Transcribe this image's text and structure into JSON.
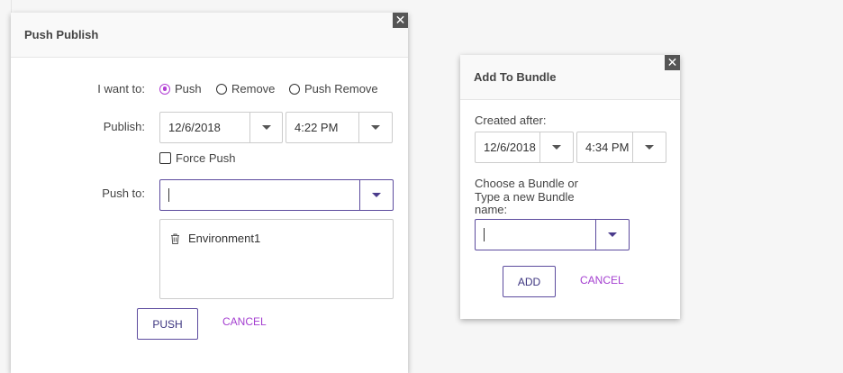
{
  "push_publish": {
    "title": "Push Publish",
    "close_icon": "close-icon",
    "i_want_to_label": "I want to:",
    "options": [
      {
        "label": "Push",
        "selected": true
      },
      {
        "label": "Remove",
        "selected": false
      },
      {
        "label": "Push Remove",
        "selected": false
      }
    ],
    "publish_label": "Publish:",
    "date": "12/6/2018",
    "time": "4:22 PM",
    "force_push_label": "Force Push",
    "force_push_checked": false,
    "push_to_label": "Push to:",
    "push_to_value": "",
    "environments": [
      "Environment1"
    ],
    "push_button": "PUSH",
    "cancel_button": "CANCEL"
  },
  "add_to_bundle": {
    "title": "Add To Bundle",
    "created_after_label": "Created after:",
    "date": "12/6/2018",
    "time": "4:34 PM",
    "bundle_label_lines": [
      "Choose a Bundle or",
      "Type a new Bundle",
      "name:"
    ],
    "bundle_value": "",
    "add_button": "ADD",
    "cancel_button": "CANCEL"
  },
  "colors": {
    "accent": "#5c4b9e",
    "link": "#a43fd0",
    "radio": "#b23fd4"
  }
}
